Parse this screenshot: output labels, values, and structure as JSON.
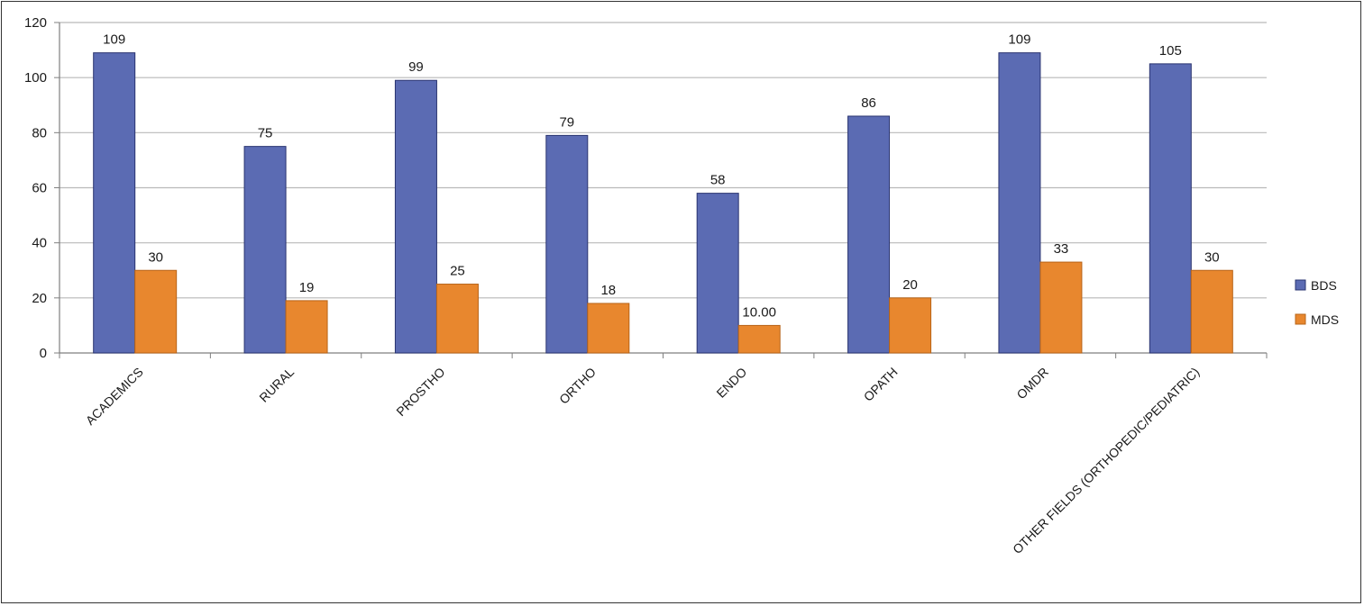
{
  "chart_data": {
    "type": "bar",
    "categories": [
      "ACADEMICS",
      "RURAL",
      "PROSTHO",
      "ORTHO",
      "ENDO",
      "OPATH",
      "OMDR",
      "OTHER FIELDS (ORTHOPEDIC/PEDIATRIC)"
    ],
    "series": [
      {
        "name": "BDS",
        "values": [
          109,
          75,
          99,
          79,
          58,
          86,
          109,
          105
        ],
        "labels": [
          "109",
          "75",
          "99",
          "79",
          "58",
          "86",
          "109",
          "105"
        ],
        "color": "#5b6bb3"
      },
      {
        "name": "MDS",
        "values": [
          30,
          19,
          25,
          18,
          10,
          20,
          33,
          30
        ],
        "labels": [
          "30",
          "19",
          "25",
          "18",
          "10.00",
          "20",
          "33",
          "30"
        ],
        "color": "#e8872e"
      }
    ],
    "ylim": [
      0,
      120
    ],
    "yticks": [
      "0",
      "20",
      "40",
      "60",
      "80",
      "100",
      "120"
    ],
    "grid": true,
    "legend_position": "right"
  }
}
